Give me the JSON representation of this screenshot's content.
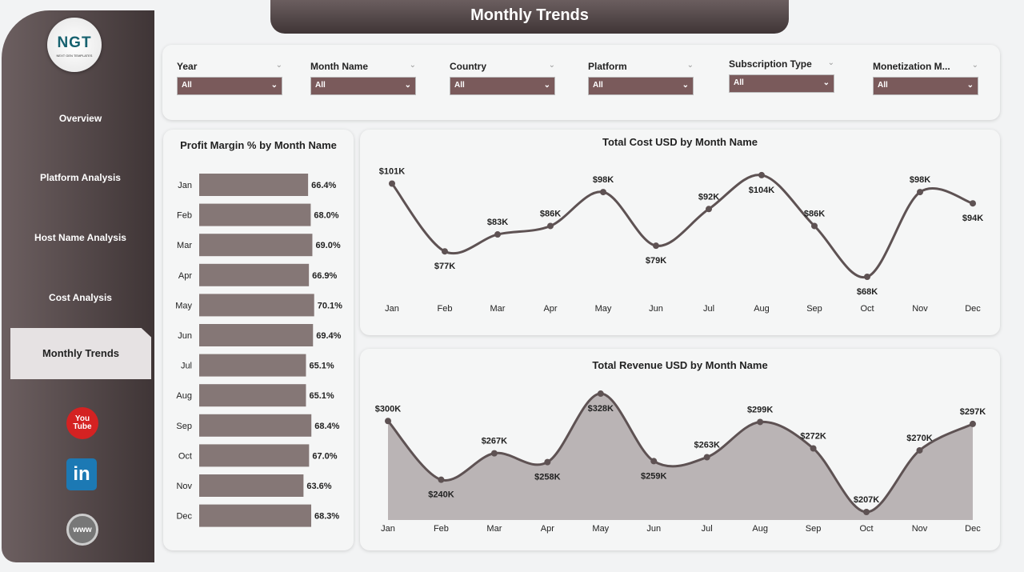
{
  "title": "Monthly Trends",
  "logo": {
    "text": "NGT",
    "sub": "NEXT GEN TEMPLATES"
  },
  "nav": [
    "Overview",
    "Platform Analysis",
    "Host Name Analysis",
    "Cost Analysis",
    "Monthly Trends"
  ],
  "active_nav": "Monthly Trends",
  "social": [
    {
      "icon": "youtube-icon",
      "label": "You Tube"
    },
    {
      "icon": "linkedin-icon",
      "label": "in"
    },
    {
      "icon": "globe-icon",
      "label": "www"
    }
  ],
  "filters": [
    {
      "label": "Year",
      "value": "All"
    },
    {
      "label": "Month Name",
      "value": "All"
    },
    {
      "label": "Country",
      "value": "All"
    },
    {
      "label": "Platform",
      "value": "All"
    },
    {
      "label": "Subscription Type",
      "value": "All"
    },
    {
      "label": "Monetization M...",
      "value": "All"
    }
  ],
  "colors": {
    "bar": "#857776",
    "line": "#5e5253",
    "area": "#bab4b5",
    "accent": "#7a5a5b"
  },
  "chart_data": [
    {
      "type": "bar",
      "title": "Profit Margin % by Month Name",
      "categories": [
        "Jan",
        "Feb",
        "Mar",
        "Apr",
        "May",
        "Jun",
        "Jul",
        "Aug",
        "Sep",
        "Oct",
        "Nov",
        "Dec"
      ],
      "values": [
        66.4,
        68.0,
        69.0,
        66.9,
        70.1,
        69.4,
        65.1,
        65.1,
        68.4,
        67.0,
        63.6,
        68.3
      ],
      "labels": [
        "66.4%",
        "68.0%",
        "69.0%",
        "66.9%",
        "70.1%",
        "69.4%",
        "65.1%",
        "65.1%",
        "68.4%",
        "67.0%",
        "63.6%",
        "68.3%"
      ],
      "orientation": "horizontal"
    },
    {
      "type": "line",
      "title": "Total Cost USD by Month Name",
      "categories": [
        "Jan",
        "Feb",
        "Mar",
        "Apr",
        "May",
        "Jun",
        "Jul",
        "Aug",
        "Sep",
        "Oct",
        "Nov",
        "Dec"
      ],
      "values": [
        101,
        77,
        83,
        86,
        98,
        79,
        92,
        104,
        86,
        68,
        98,
        94
      ],
      "labels": [
        "$101K",
        "$77K",
        "$83K",
        "$86K",
        "$98K",
        "$79K",
        "$92K",
        "$104K",
        "$86K",
        "$68K",
        "$98K",
        "$94K"
      ],
      "unit": "K USD"
    },
    {
      "type": "area",
      "title": "Total Revenue USD by Month Name",
      "categories": [
        "Jan",
        "Feb",
        "Mar",
        "Apr",
        "May",
        "Jun",
        "Jul",
        "Aug",
        "Sep",
        "Oct",
        "Nov",
        "Dec"
      ],
      "values": [
        300,
        240,
        267,
        258,
        328,
        259,
        263,
        299,
        272,
        207,
        270,
        297
      ],
      "labels": [
        "$300K",
        "$240K",
        "$267K",
        "$258K",
        "$328K",
        "$259K",
        "$263K",
        "$299K",
        "$272K",
        "$207K",
        "$270K",
        "$297K"
      ],
      "unit": "K USD"
    }
  ]
}
